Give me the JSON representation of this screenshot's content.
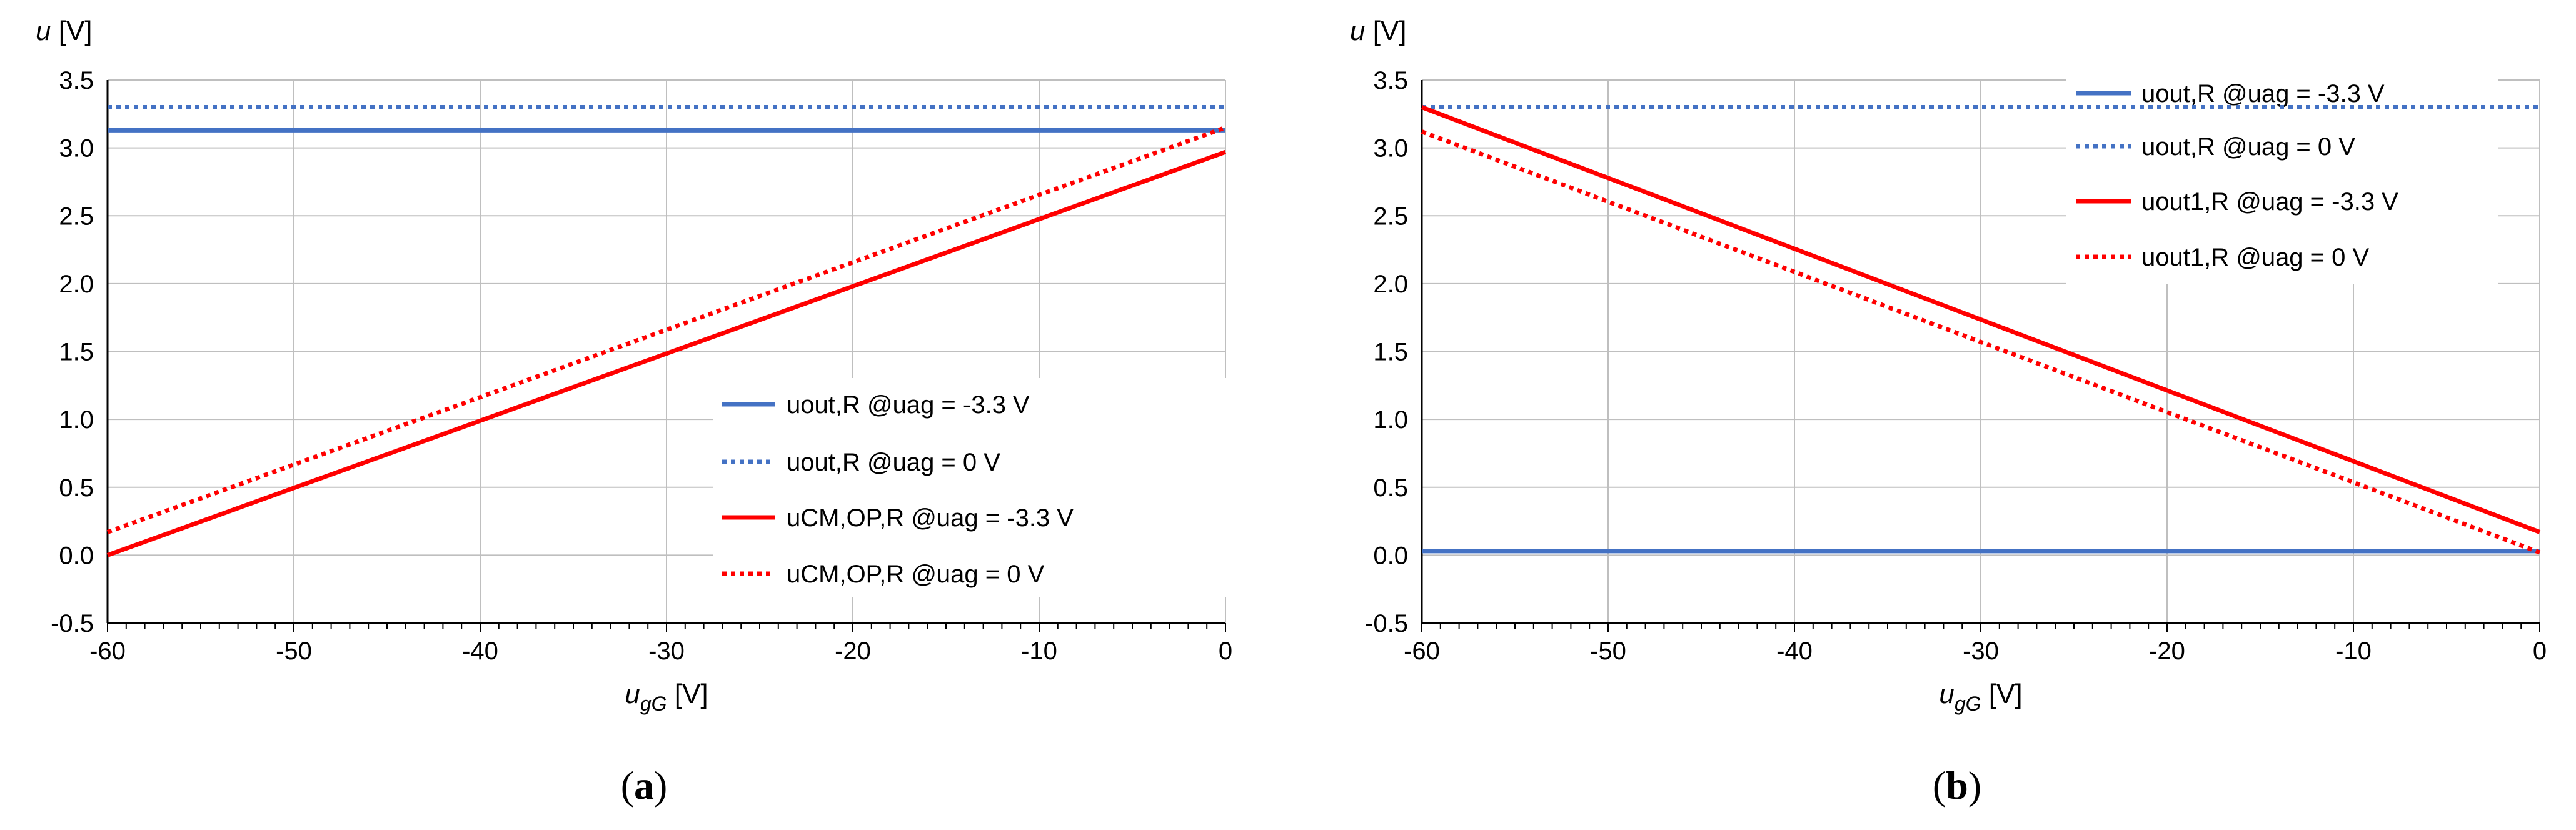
{
  "chart_data": [
    {
      "type": "line",
      "panel": "a",
      "caption_letter": "a",
      "ylabel": {
        "symbol": "u",
        "unit": " [V]"
      },
      "xlabel": {
        "symbol": "u",
        "subscript": "gG",
        "unit": " [V]"
      },
      "xlim": [
        -60,
        0
      ],
      "ylim": [
        -0.5,
        3.5
      ],
      "x_ticks": [
        "-60",
        "-50",
        "-40",
        "-30",
        "-20",
        "-10",
        "0"
      ],
      "y_ticks": [
        "-0.5",
        "0.0",
        "0.5",
        "1.0",
        "1.5",
        "2.0",
        "2.5",
        "3.0",
        "3.5"
      ],
      "grid": true,
      "legend_position": "bottom-right",
      "series": [
        {
          "name": "uout,R @uag = -3.3 V",
          "color": "#4472C4",
          "style": "solid",
          "x": [
            -60,
            0
          ],
          "values": [
            3.13,
            3.13
          ]
        },
        {
          "name": "uout,R @uag = 0 V",
          "color": "#4472C4",
          "style": "dotted",
          "x": [
            -60,
            0
          ],
          "values": [
            3.3,
            3.3
          ]
        },
        {
          "name": "uCM,OP,R @uag = -3.3 V",
          "color": "#FF0000",
          "style": "solid",
          "x": [
            -60,
            0
          ],
          "values": [
            0.0,
            2.97
          ]
        },
        {
          "name": "uCM,OP,R @uag = 0 V",
          "color": "#FF0000",
          "style": "dotted",
          "x": [
            -60,
            0
          ],
          "values": [
            0.17,
            3.15
          ]
        }
      ]
    },
    {
      "type": "line",
      "panel": "b",
      "caption_letter": "b",
      "ylabel": {
        "symbol": "u",
        "unit": " [V]"
      },
      "xlabel": {
        "symbol": "u",
        "subscript": "gG",
        "unit": " [V]"
      },
      "xlim": [
        -60,
        0
      ],
      "ylim": [
        -0.5,
        3.5
      ],
      "x_ticks": [
        "-60",
        "-50",
        "-40",
        "-30",
        "-20",
        "-10",
        "0"
      ],
      "y_ticks": [
        "-0.5",
        "0.0",
        "0.5",
        "1.0",
        "1.5",
        "2.0",
        "2.5",
        "3.0",
        "3.5"
      ],
      "grid": true,
      "legend_position": "top-right",
      "series": [
        {
          "name": "uout,R @uag = -3.3 V",
          "color": "#4472C4",
          "style": "solid",
          "x": [
            -60,
            0
          ],
          "values": [
            0.03,
            0.03
          ]
        },
        {
          "name": "uout,R @uag = 0 V",
          "color": "#4472C4",
          "style": "dotted",
          "x": [
            -60,
            0
          ],
          "values": [
            3.3,
            3.3
          ]
        },
        {
          "name": "uout1,R @uag = -3.3 V",
          "color": "#FF0000",
          "style": "solid",
          "x": [
            -60,
            0
          ],
          "values": [
            3.3,
            0.17
          ]
        },
        {
          "name": "uout1,R @uag = 0 V",
          "color": "#FF0000",
          "style": "dotted",
          "x": [
            -60,
            0
          ],
          "values": [
            3.12,
            0.02
          ]
        }
      ]
    }
  ]
}
